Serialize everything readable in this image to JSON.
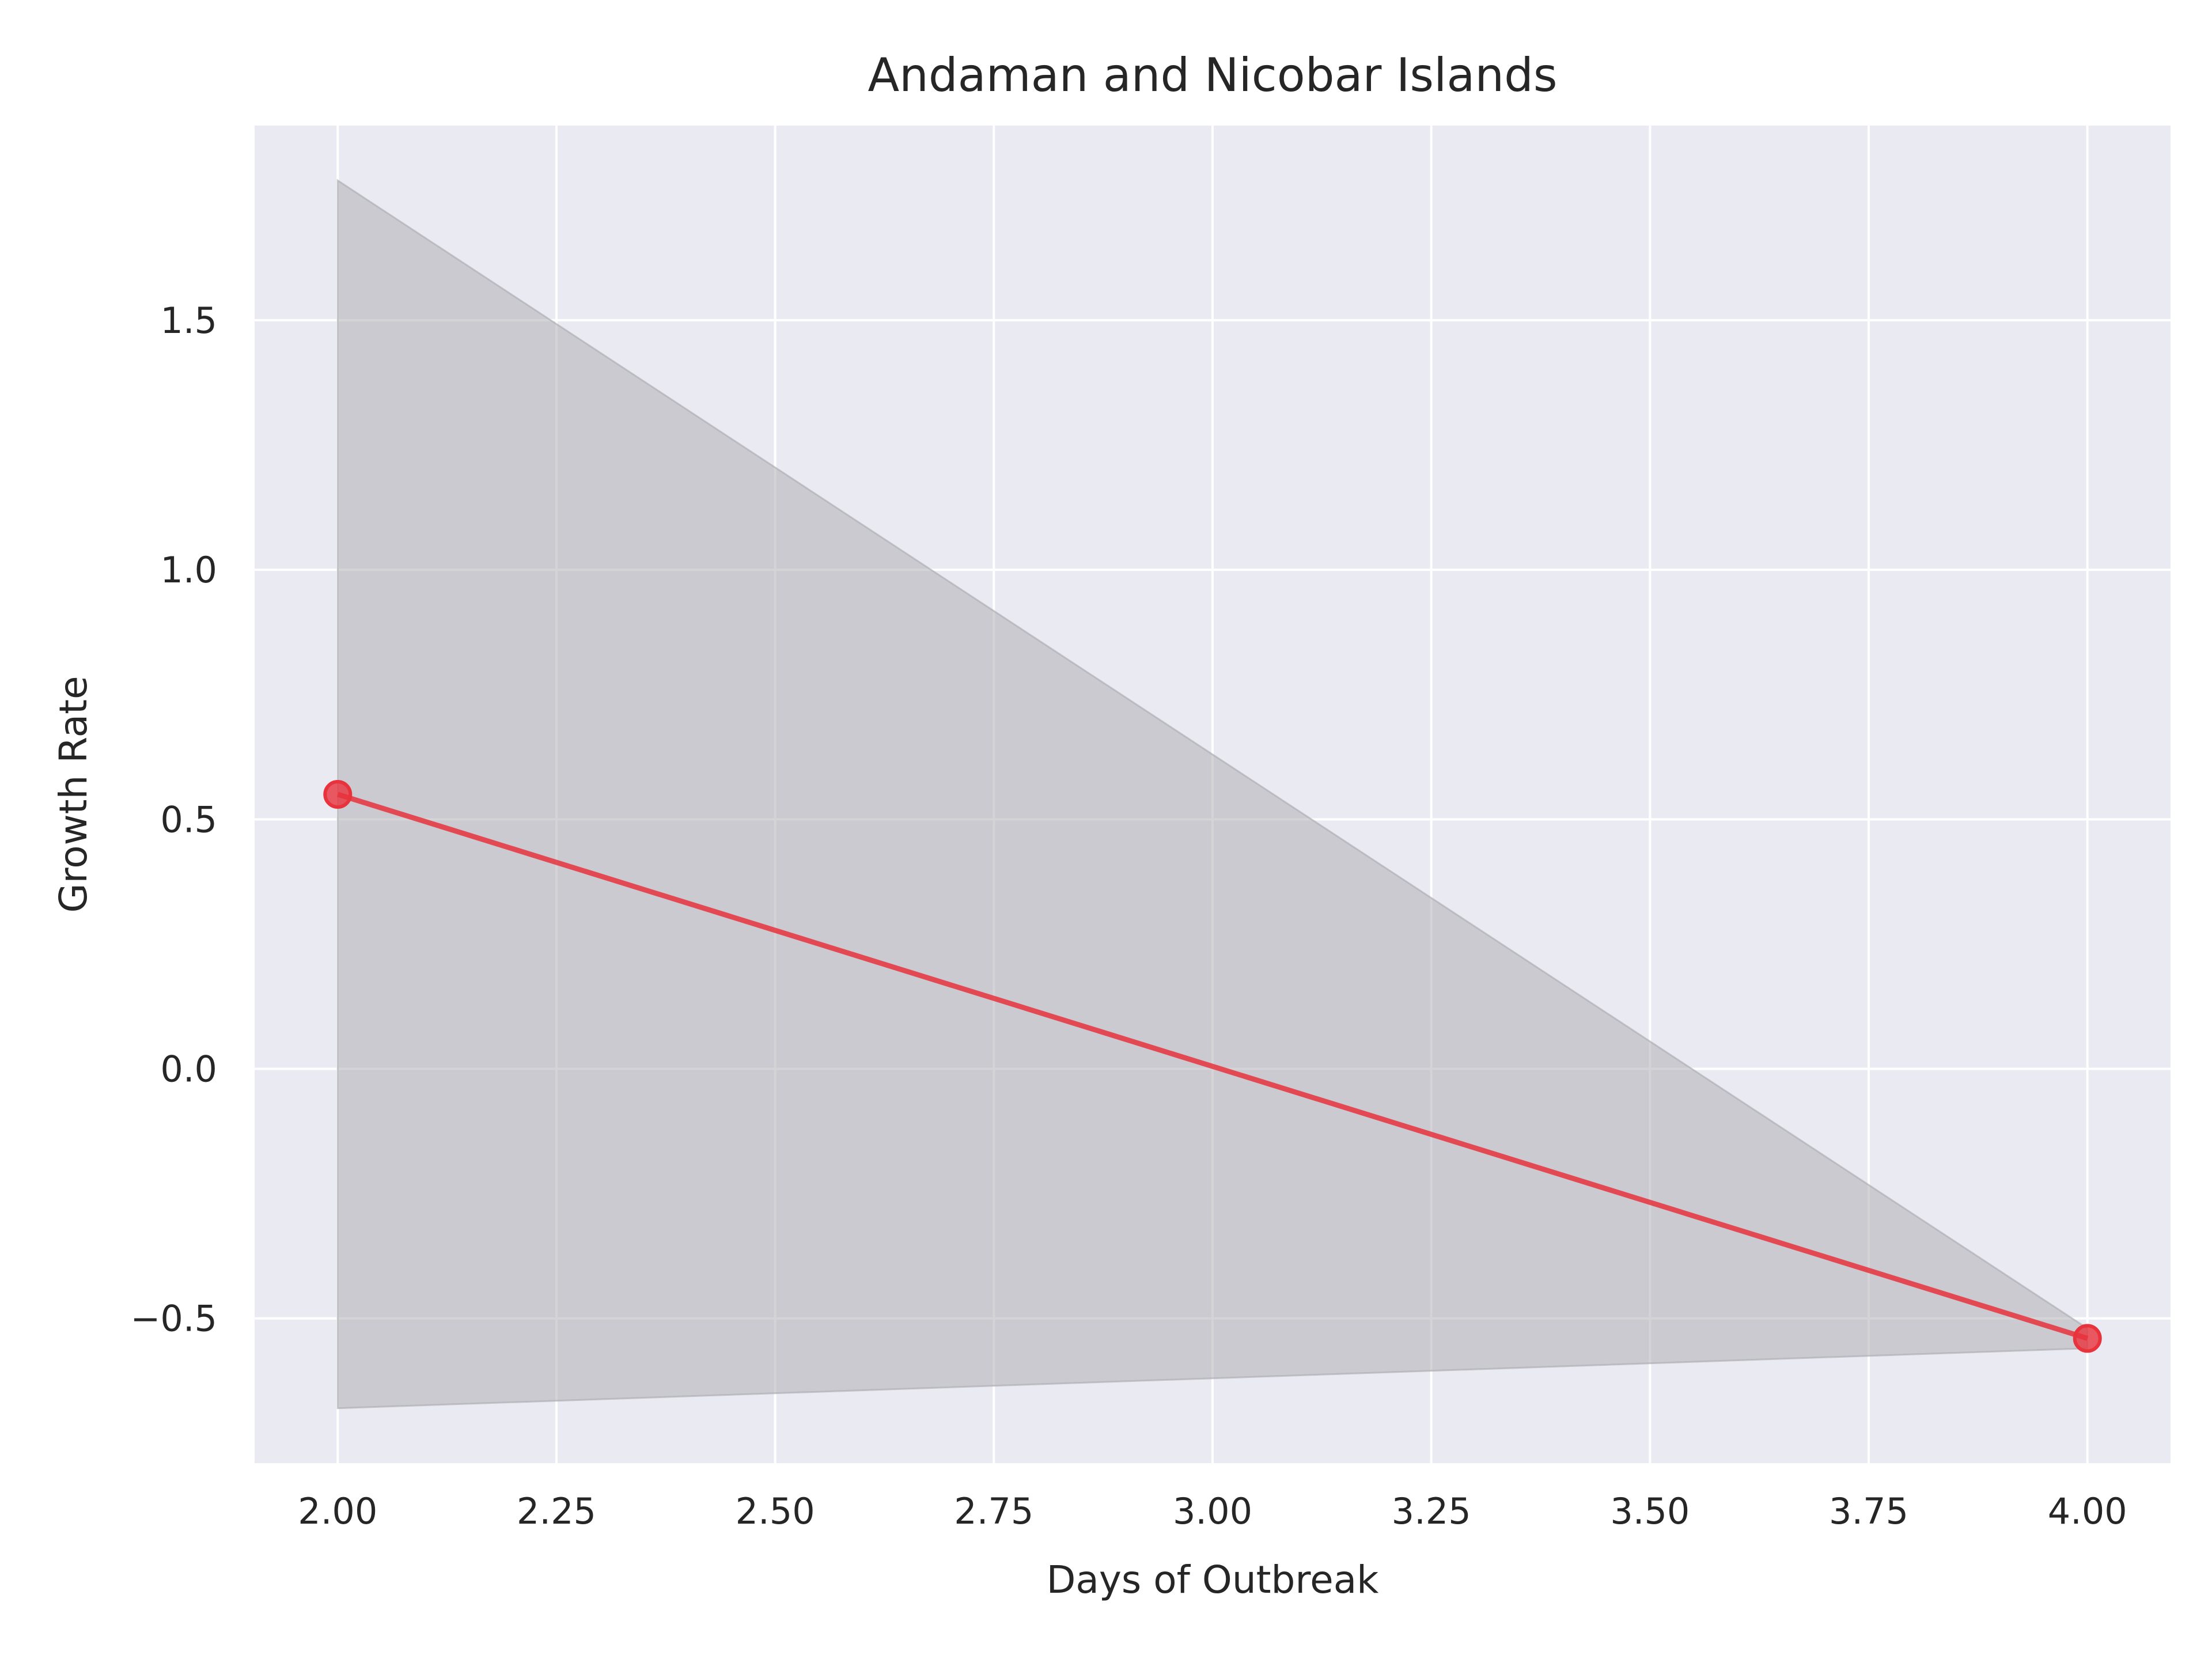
{
  "chart_data": {
    "type": "line",
    "title": "Andaman and Nicobar Islands",
    "xlabel": "Days of Outbreak",
    "ylabel": "Growth Rate",
    "xlim": [
      1.905,
      4.095
    ],
    "ylim": [
      -0.79,
      1.89
    ],
    "x_ticks": [
      2.0,
      2.25,
      2.5,
      2.75,
      3.0,
      3.25,
      3.5,
      3.75,
      4.0
    ],
    "x_tick_labels": [
      "2.00",
      "2.25",
      "2.50",
      "2.75",
      "3.00",
      "3.25",
      "3.50",
      "3.75",
      "4.00"
    ],
    "y_ticks": [
      -0.5,
      0.0,
      0.5,
      1.0,
      1.5
    ],
    "y_tick_labels": [
      "−0.5",
      "0.0",
      "0.5",
      "1.0",
      "1.5"
    ],
    "grid": true,
    "series": [
      {
        "x": [
          2,
          4
        ],
        "y": [
          0.55,
          -0.54
        ],
        "color": "#e8323c",
        "marker": "circle"
      }
    ],
    "confidence_band": {
      "x": [
        2,
        4
      ],
      "upper": [
        1.78,
        -0.52
      ],
      "lower": [
        -0.68,
        -0.56
      ],
      "color": "#a9a9ad"
    },
    "colors": {
      "plot_background": "#eaeaf2",
      "grid": "#ffffff",
      "line": "#e8323c",
      "band": "#a9a9ad"
    }
  }
}
